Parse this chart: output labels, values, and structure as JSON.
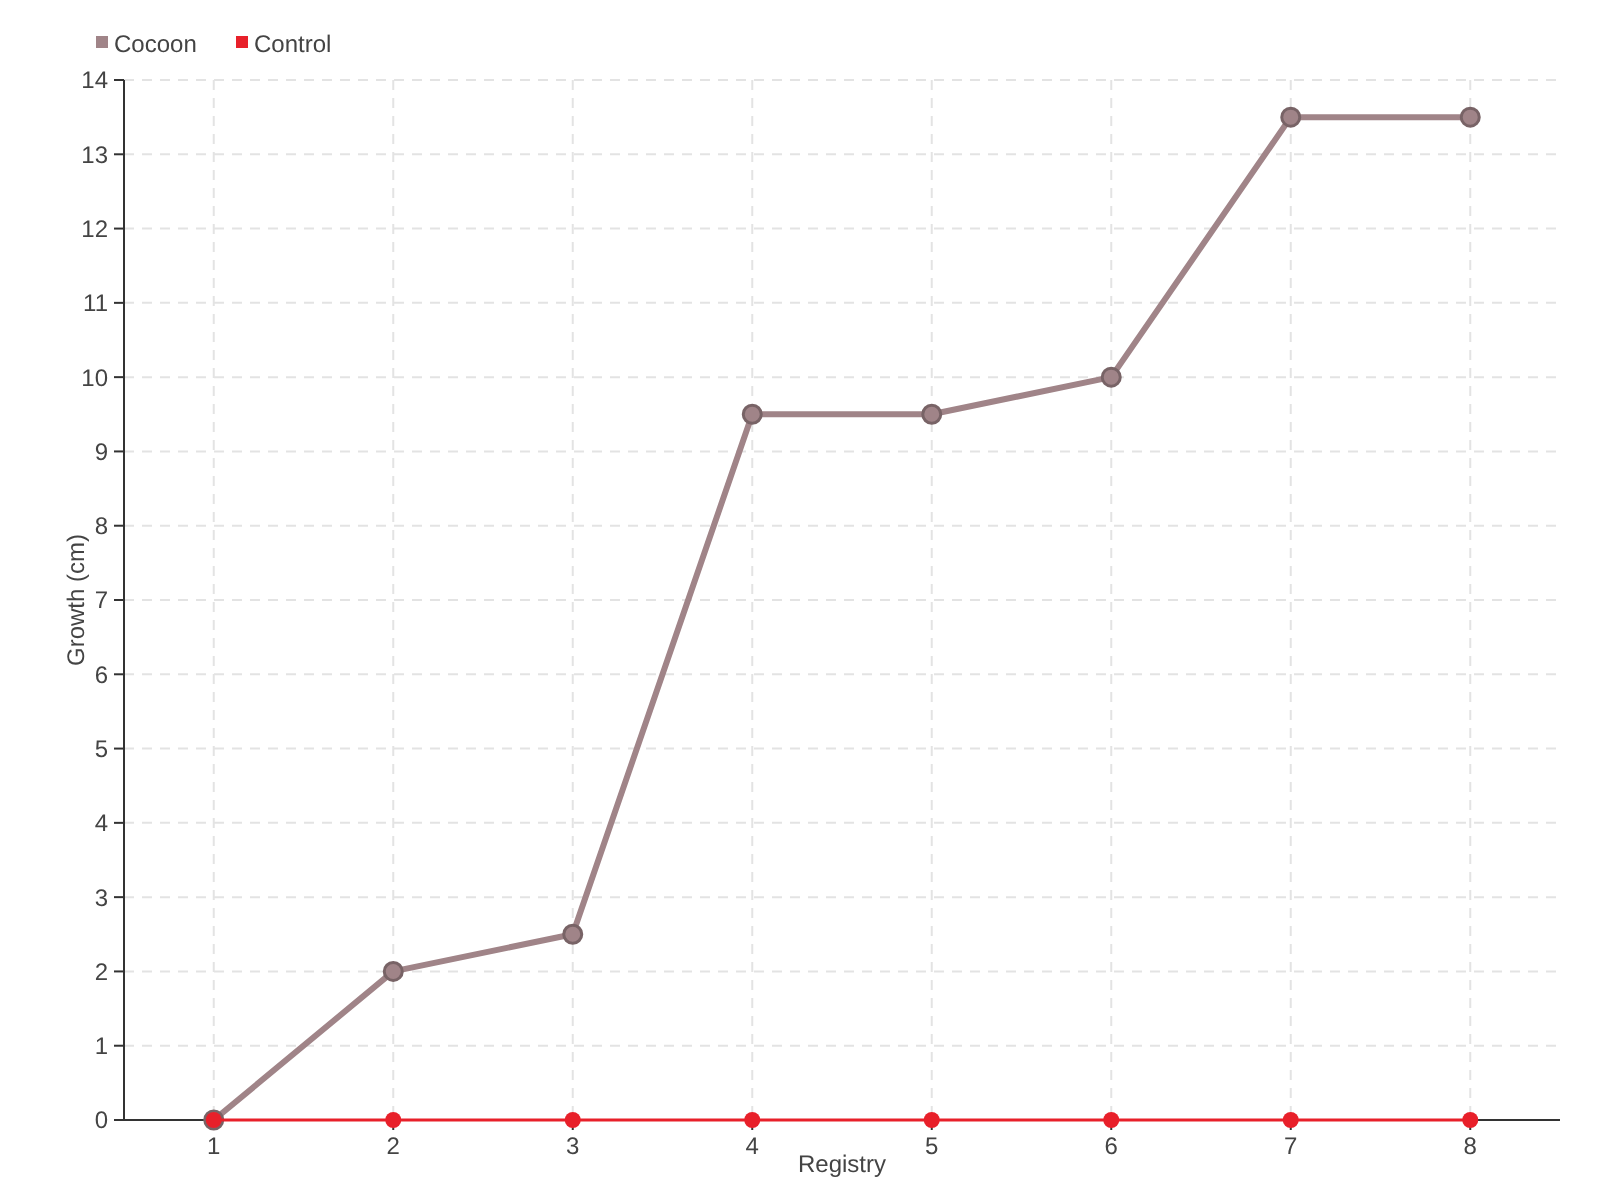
{
  "chart_data": {
    "type": "line",
    "xlabel": "Registry",
    "ylabel": "Growth (cm)",
    "categories": [
      "1",
      "2",
      "3",
      "4",
      "5",
      "6",
      "7",
      "8"
    ],
    "series": [
      {
        "name": "Cocoon",
        "color": "#a08488",
        "values": [
          0,
          2,
          2.5,
          9.5,
          9.5,
          10,
          13.5,
          13.5
        ]
      },
      {
        "name": "Control",
        "color": "#e8202a",
        "values": [
          0,
          0,
          0,
          0,
          0,
          0,
          0,
          0
        ]
      }
    ],
    "ylim": [
      0,
      14
    ],
    "yticks": [
      0,
      1,
      2,
      3,
      4,
      5,
      6,
      7,
      8,
      9,
      10,
      11,
      12,
      13,
      14
    ],
    "grid": true,
    "legend": "top left",
    "marker": "circle"
  }
}
